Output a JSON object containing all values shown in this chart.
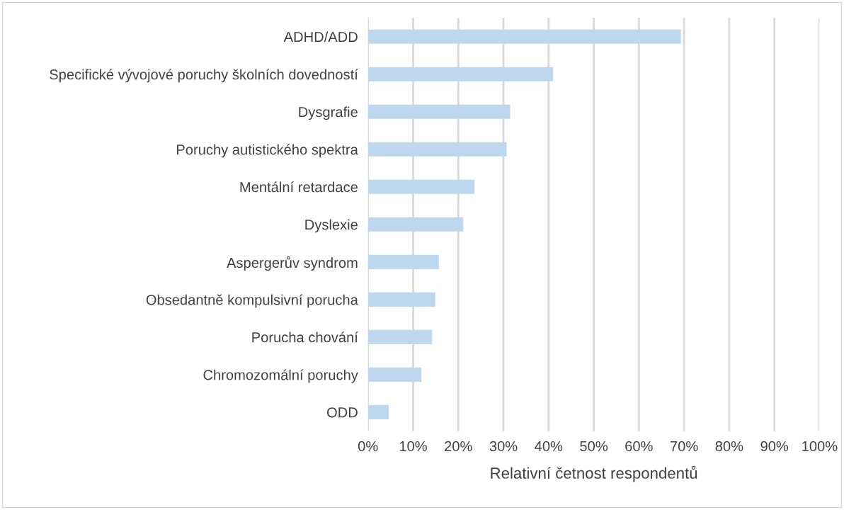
{
  "chart_data": {
    "type": "bar",
    "orientation": "horizontal",
    "xlabel": "Relativní četnost respondentů",
    "categories": [
      "ADHD/ADD",
      "Specifické vývojové poruchy školních dovedností",
      "Dysgrafie",
      "Poruchy autistického spektra",
      "Mentální retardace",
      "Dyslexie",
      "Aspergerův syndrom",
      "Obsedantně kompulsivní porucha",
      "Porucha chování",
      "Chromozomální poruchy",
      "ODD"
    ],
    "values": [
      69.3,
      41.0,
      31.5,
      30.7,
      23.6,
      21.1,
      15.7,
      14.9,
      14.2,
      11.8,
      4.6
    ],
    "color": "#bdd7ee",
    "xlim": [
      0,
      100
    ],
    "xticks": [
      {
        "value": 0,
        "label": "0%"
      },
      {
        "value": 10,
        "label": "10%"
      },
      {
        "value": 20,
        "label": "20%"
      },
      {
        "value": 30,
        "label": "30%"
      },
      {
        "value": 40,
        "label": "40%"
      },
      {
        "value": 50,
        "label": "50%"
      },
      {
        "value": 60,
        "label": "60%"
      },
      {
        "value": 70,
        "label": "70%"
      },
      {
        "value": 80,
        "label": "80%"
      },
      {
        "value": 90,
        "label": "90%"
      },
      {
        "value": 100,
        "label": "100%"
      }
    ],
    "grid": "x"
  }
}
